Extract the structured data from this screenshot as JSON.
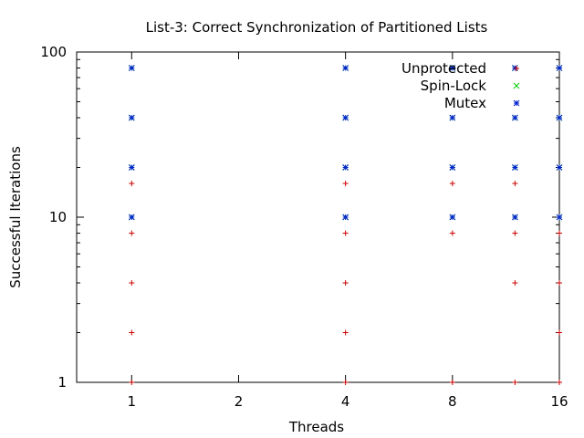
{
  "chart_data": {
    "type": "scatter",
    "title": "List-3: Correct Synchronization of Partitioned Lists",
    "xlabel": "Threads",
    "ylabel": "Successful Iterations",
    "x_scale": "log2",
    "y_scale": "log10",
    "xlim": [
      0.7,
      16
    ],
    "ylim": [
      1,
      100
    ],
    "x_ticks": [
      1,
      2,
      4,
      8,
      16
    ],
    "x_tick_labels": [
      "1",
      "2",
      "4",
      "8",
      "16"
    ],
    "y_ticks": [
      1,
      10,
      100
    ],
    "y_tick_labels": [
      "1",
      "10",
      "100"
    ],
    "grid": false,
    "legend_position": "top-right",
    "series": [
      {
        "name": "Unprotected",
        "color": "#cc0000",
        "marker": "plus",
        "points": [
          [
            1,
            1
          ],
          [
            1,
            2
          ],
          [
            1,
            4
          ],
          [
            1,
            8
          ],
          [
            1,
            16
          ],
          [
            4,
            1
          ],
          [
            4,
            2
          ],
          [
            4,
            4
          ],
          [
            4,
            8
          ],
          [
            4,
            16
          ],
          [
            8,
            1
          ],
          [
            8,
            8
          ],
          [
            8,
            16
          ],
          [
            12,
            1
          ],
          [
            12,
            4
          ],
          [
            12,
            8
          ],
          [
            12,
            16
          ],
          [
            16,
            1
          ],
          [
            16,
            2
          ],
          [
            16,
            4
          ],
          [
            16,
            8
          ]
        ]
      },
      {
        "name": "Spin-Lock",
        "color": "#00cc00",
        "marker": "cross",
        "points": [
          [
            1,
            10
          ],
          [
            1,
            20
          ],
          [
            1,
            40
          ],
          [
            1,
            80
          ],
          [
            4,
            10
          ],
          [
            4,
            20
          ],
          [
            4,
            40
          ],
          [
            4,
            80
          ],
          [
            8,
            10
          ],
          [
            8,
            20
          ],
          [
            8,
            40
          ],
          [
            8,
            80
          ],
          [
            12,
            10
          ],
          [
            12,
            20
          ],
          [
            12,
            40
          ],
          [
            12,
            80
          ],
          [
            16,
            10
          ],
          [
            16,
            20
          ],
          [
            16,
            40
          ],
          [
            16,
            80
          ]
        ]
      },
      {
        "name": "Mutex",
        "color": "#0022cc",
        "marker": "star",
        "points": [
          [
            1,
            10
          ],
          [
            1,
            20
          ],
          [
            1,
            40
          ],
          [
            1,
            80
          ],
          [
            4,
            10
          ],
          [
            4,
            20
          ],
          [
            4,
            40
          ],
          [
            4,
            80
          ],
          [
            8,
            10
          ],
          [
            8,
            20
          ],
          [
            8,
            40
          ],
          [
            8,
            80
          ],
          [
            12,
            10
          ],
          [
            12,
            20
          ],
          [
            12,
            40
          ],
          [
            12,
            80
          ],
          [
            16,
            10
          ],
          [
            16,
            20
          ],
          [
            16,
            40
          ],
          [
            16,
            80
          ]
        ]
      }
    ]
  }
}
